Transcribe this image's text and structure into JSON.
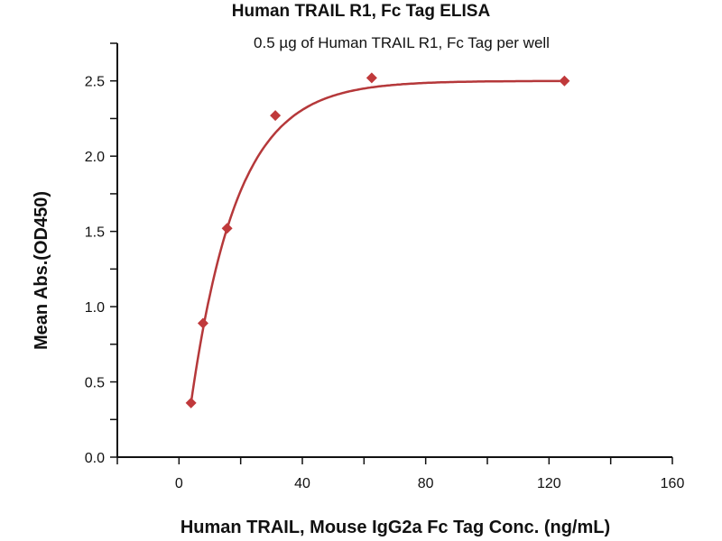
{
  "chart_data": {
    "type": "scatter",
    "title": "Human TRAIL R1, Fc Tag ELISA",
    "subtitle": "0.5 µg of Human TRAIL R1, Fc Tag per well",
    "xlabel": "Human TRAIL, Mouse IgG2a Fc Tag Conc. (ng/mL)",
    "ylabel": "Mean Abs.(OD450)",
    "xlim": [
      -20,
      160
    ],
    "ylim": [
      0,
      2.75
    ],
    "xticks": [
      0,
      40,
      80,
      120,
      160
    ],
    "xtick_labels": [
      "0",
      "40",
      "80",
      "120",
      "160"
    ],
    "yticks": [
      0,
      0.5,
      1.0,
      1.5,
      2.0,
      2.5
    ],
    "ytick_labels": [
      "0.0",
      "0.5",
      "1.0",
      "1.5",
      "2.0",
      "2.5"
    ],
    "grid": false,
    "series": [
      {
        "name": "Mean Abs.",
        "x": [
          3.9,
          7.8,
          15.6,
          31.25,
          62.5,
          125
        ],
        "y": [
          0.36,
          0.89,
          1.52,
          2.27,
          2.52,
          2.5
        ],
        "color": "#c0393b",
        "marker": "diamond"
      }
    ],
    "fit_curve": {
      "model": "exponential-rise",
      "max": 2.5,
      "rate": 0.0667,
      "x0": 1.56,
      "x_range": [
        3.9,
        125
      ],
      "color": "#b5383a"
    }
  }
}
